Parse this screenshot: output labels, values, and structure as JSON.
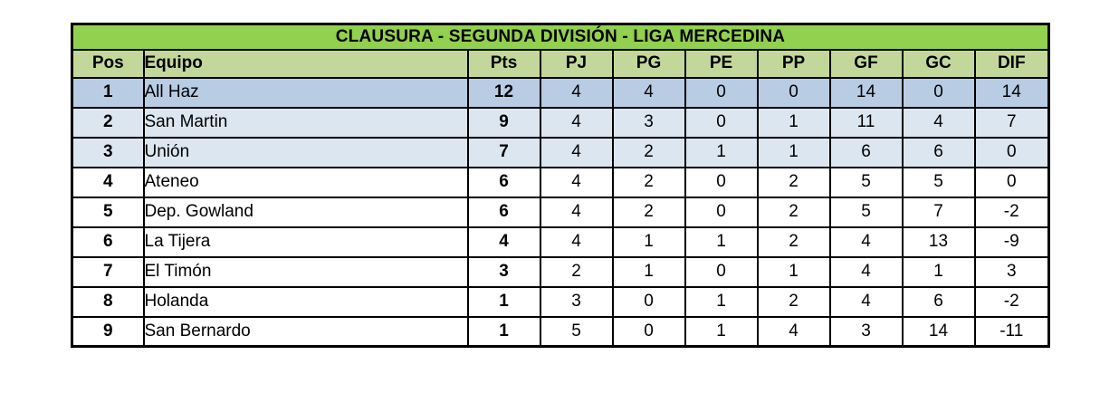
{
  "title": "CLAUSURA - SEGUNDA DIVISIÓN - LIGA MERCEDINA",
  "colors": {
    "title_bg": "#92D050",
    "header_bg": "#C4D79B",
    "leader_row_bg": "#B8CCE4",
    "promotion_row_bg": "#DCE6F1",
    "border": "#000000",
    "text": "#000000"
  },
  "standings": {
    "columns": [
      {
        "key": "pos",
        "label": "Pos",
        "align": "center",
        "bold": true
      },
      {
        "key": "equipo",
        "label": "Equipo",
        "align": "left",
        "bold": false
      },
      {
        "key": "pts",
        "label": "Pts",
        "align": "center",
        "bold": true
      },
      {
        "key": "pj",
        "label": "PJ",
        "align": "center",
        "bold": false
      },
      {
        "key": "pg",
        "label": "PG",
        "align": "center",
        "bold": false
      },
      {
        "key": "pe",
        "label": "PE",
        "align": "center",
        "bold": false
      },
      {
        "key": "pp",
        "label": "PP",
        "align": "center",
        "bold": false
      },
      {
        "key": "gf",
        "label": "GF",
        "align": "center",
        "bold": false
      },
      {
        "key": "gc",
        "label": "GC",
        "align": "center",
        "bold": false
      },
      {
        "key": "dif",
        "label": "DIF",
        "align": "center",
        "bold": false
      }
    ],
    "rows": [
      {
        "highlight": "leader",
        "cells": [
          "1",
          "All Haz",
          "12",
          "4",
          "4",
          "0",
          "0",
          "14",
          "0",
          "14"
        ]
      },
      {
        "highlight": "promotion",
        "cells": [
          "2",
          "San Martin",
          "9",
          "4",
          "3",
          "0",
          "1",
          "11",
          "4",
          "7"
        ]
      },
      {
        "highlight": "promotion",
        "cells": [
          "3",
          "Unión",
          "7",
          "4",
          "2",
          "1",
          "1",
          "6",
          "6",
          "0"
        ]
      },
      {
        "highlight": "none",
        "cells": [
          "4",
          "Ateneo",
          "6",
          "4",
          "2",
          "0",
          "2",
          "5",
          "5",
          "0"
        ]
      },
      {
        "highlight": "none",
        "cells": [
          "5",
          "Dep. Gowland",
          "6",
          "4",
          "2",
          "0",
          "2",
          "5",
          "7",
          "-2"
        ]
      },
      {
        "highlight": "none",
        "cells": [
          "6",
          "La Tijera",
          "4",
          "4",
          "1",
          "1",
          "2",
          "4",
          "13",
          "-9"
        ]
      },
      {
        "highlight": "none",
        "cells": [
          "7",
          "El Timón",
          "3",
          "2",
          "1",
          "0",
          "1",
          "4",
          "1",
          "3"
        ]
      },
      {
        "highlight": "none",
        "cells": [
          "8",
          "Holanda",
          "1",
          "3",
          "0",
          "1",
          "2",
          "4",
          "6",
          "-2"
        ]
      },
      {
        "highlight": "none",
        "cells": [
          "9",
          "San Bernardo",
          "1",
          "5",
          "0",
          "1",
          "4",
          "3",
          "14",
          "-11"
        ]
      }
    ]
  },
  "chart_data": {
    "type": "table",
    "title": "CLAUSURA - SEGUNDA DIVISIÓN - LIGA MERCEDINA",
    "columns": [
      "Pos",
      "Equipo",
      "Pts",
      "PJ",
      "PG",
      "PE",
      "PP",
      "GF",
      "GC",
      "DIF"
    ],
    "rows": [
      [
        1,
        "All Haz",
        12,
        4,
        4,
        0,
        0,
        14,
        0,
        14
      ],
      [
        2,
        "San Martin",
        9,
        4,
        3,
        0,
        1,
        11,
        4,
        7
      ],
      [
        3,
        "Unión",
        7,
        4,
        2,
        1,
        1,
        6,
        6,
        0
      ],
      [
        4,
        "Ateneo",
        6,
        4,
        2,
        0,
        2,
        5,
        5,
        0
      ],
      [
        5,
        "Dep. Gowland",
        6,
        4,
        2,
        0,
        2,
        5,
        7,
        -2
      ],
      [
        6,
        "La Tijera",
        4,
        4,
        1,
        1,
        2,
        4,
        13,
        -9
      ],
      [
        7,
        "El Timón",
        3,
        2,
        1,
        0,
        1,
        4,
        1,
        3
      ],
      [
        8,
        "Holanda",
        1,
        3,
        0,
        1,
        2,
        4,
        6,
        -2
      ],
      [
        9,
        "San Bernardo",
        1,
        5,
        0,
        1,
        4,
        3,
        14,
        -11
      ]
    ]
  }
}
